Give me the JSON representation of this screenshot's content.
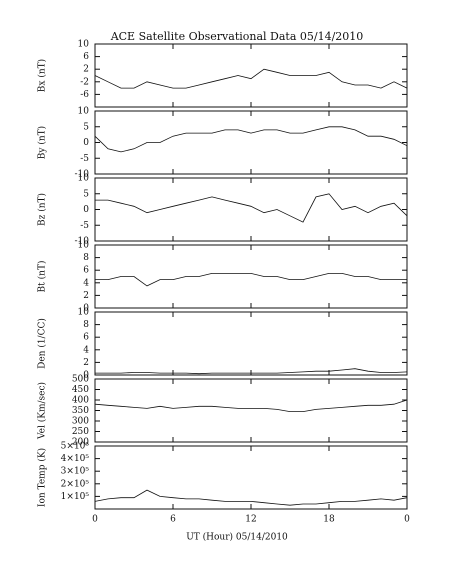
{
  "chart_data": {
    "type": "line",
    "title": "ACE Satellite Observational Data   05/14/2010",
    "xlabel": "UT (Hour)  05/14/2010",
    "xlim": [
      0,
      24
    ],
    "xticks": [
      0,
      6,
      12,
      18,
      {
        "value": 24,
        "label": "0"
      }
    ],
    "x": [
      0,
      1,
      2,
      3,
      4,
      5,
      6,
      7,
      8,
      9,
      10,
      11,
      12,
      13,
      14,
      15,
      16,
      17,
      18,
      19,
      20,
      21,
      22,
      23,
      24
    ],
    "panels": [
      {
        "ylabel": "Bx (nT)",
        "ylim": [
          -10,
          10
        ],
        "yticks": [
          10,
          6,
          2,
          -2,
          -6
        ],
        "values": [
          0,
          -2,
          -4,
          -4,
          -2,
          -3,
          -4,
          -4,
          -3,
          -2,
          -1,
          0,
          -1,
          2,
          1,
          0,
          0,
          0,
          1,
          -2,
          -3,
          -3,
          -4,
          -2,
          -4
        ]
      },
      {
        "ylabel": "By (nT)",
        "ylim": [
          -10,
          10
        ],
        "yticks": [
          10,
          5,
          0,
          -5,
          -10
        ],
        "values": [
          2,
          -2,
          -3,
          -2,
          0,
          0,
          2,
          3,
          3,
          3,
          4,
          4,
          3,
          4,
          4,
          3,
          3,
          4,
          5,
          5,
          4,
          2,
          2,
          1,
          -1
        ]
      },
      {
        "ylabel": "Bz (nT)",
        "ylim": [
          -10,
          10
        ],
        "yticks": [
          10,
          5,
          0,
          -5,
          -10
        ],
        "values": [
          3,
          3,
          2,
          1,
          -1,
          0,
          1,
          2,
          3,
          4,
          3,
          2,
          1,
          -1,
          0,
          -2,
          -4,
          4,
          5,
          0,
          1,
          -1,
          1,
          2,
          -2
        ]
      },
      {
        "ylabel": "Bt (nT)",
        "ylim": [
          0,
          10
        ],
        "yticks": [
          10,
          8,
          6,
          4,
          2,
          0
        ],
        "values": [
          4.5,
          4.5,
          5,
          5,
          3.5,
          4.5,
          4.5,
          5,
          5,
          5.5,
          5.5,
          5.5,
          5.5,
          5,
          5,
          4.5,
          4.5,
          5,
          5.5,
          5.5,
          5,
          5,
          4.5,
          4.5,
          4.5
        ]
      },
      {
        "ylabel": "Den (1/CC)",
        "ylim": [
          0,
          10
        ],
        "yticks": [
          10,
          8,
          6,
          4,
          2,
          0
        ],
        "values": [
          0.3,
          0.3,
          0.3,
          0.4,
          0.4,
          0.3,
          0.3,
          0.3,
          0.2,
          0.3,
          0.3,
          0.3,
          0.3,
          0.3,
          0.3,
          0.4,
          0.5,
          0.6,
          0.6,
          0.8,
          1.0,
          0.6,
          0.4,
          0.4,
          0.5
        ]
      },
      {
        "ylabel": "Vel (Km/sec)",
        "ylim": [
          200,
          500
        ],
        "yticks": [
          500,
          450,
          400,
          350,
          300,
          250,
          200
        ],
        "values": [
          380,
          375,
          370,
          365,
          360,
          370,
          360,
          365,
          370,
          370,
          365,
          360,
          360,
          360,
          355,
          345,
          345,
          355,
          360,
          365,
          370,
          375,
          375,
          380,
          400
        ]
      },
      {
        "ylabel": "Ion Temp (K)",
        "ylim": [
          0,
          500000
        ],
        "yticks": [
          {
            "value": 500000,
            "label": "5×10⁵"
          },
          {
            "value": 400000,
            "label": "4×10⁵"
          },
          {
            "value": 300000,
            "label": "3×10⁵"
          },
          {
            "value": 200000,
            "label": "2×10⁵"
          },
          {
            "value": 100000,
            "label": "1×10⁵"
          }
        ],
        "values": [
          60000,
          80000,
          90000,
          90000,
          150000,
          100000,
          90000,
          80000,
          80000,
          70000,
          60000,
          60000,
          60000,
          50000,
          40000,
          30000,
          40000,
          40000,
          50000,
          60000,
          60000,
          70000,
          80000,
          70000,
          90000
        ]
      }
    ]
  }
}
